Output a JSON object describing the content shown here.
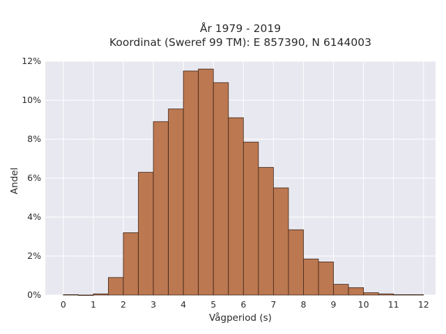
{
  "chart_data": {
    "type": "bar",
    "title": "År 1979 - 2019",
    "subtitle": "Koordinat (Sweref 99 TM): E 857390, N 6144003",
    "xlabel": "Vågperiod (s)",
    "ylabel": "Andel",
    "bin_width": 0.5,
    "bin_starts": [
      0,
      0.5,
      1,
      1.5,
      2,
      2.5,
      3,
      3.5,
      4,
      4.5,
      5,
      5.5,
      6,
      6.5,
      7,
      7.5,
      8,
      8.5,
      9,
      9.5,
      10,
      10.5,
      11,
      11.5
    ],
    "values": [
      0.02,
      0.0,
      0.06,
      0.9,
      3.2,
      6.3,
      8.9,
      9.55,
      11.5,
      11.6,
      10.9,
      9.1,
      7.85,
      6.55,
      5.5,
      3.35,
      1.85,
      1.7,
      0.55,
      0.38,
      0.12,
      0.06,
      0.02,
      0.02
    ],
    "xlim": [
      -0.6,
      12.4
    ],
    "ylim": [
      0,
      12
    ],
    "x_ticks": [
      0,
      1,
      2,
      3,
      4,
      5,
      6,
      7,
      8,
      9,
      10,
      11,
      12
    ],
    "x_tick_labels": [
      "0",
      "1",
      "2",
      "3",
      "4",
      "5",
      "6",
      "7",
      "8",
      "9",
      "10",
      "11",
      "12"
    ],
    "y_ticks": [
      0,
      2,
      4,
      6,
      8,
      10,
      12
    ],
    "y_tick_labels": [
      "0%",
      "2%",
      "4%",
      "6%",
      "8%",
      "10%",
      "12%"
    ],
    "grid": true,
    "colors": {
      "bar_fill": "#bb7851",
      "bar_edge": "#3d2417",
      "plot_bg": "#e8e8f0",
      "grid": "#ffffff"
    }
  }
}
